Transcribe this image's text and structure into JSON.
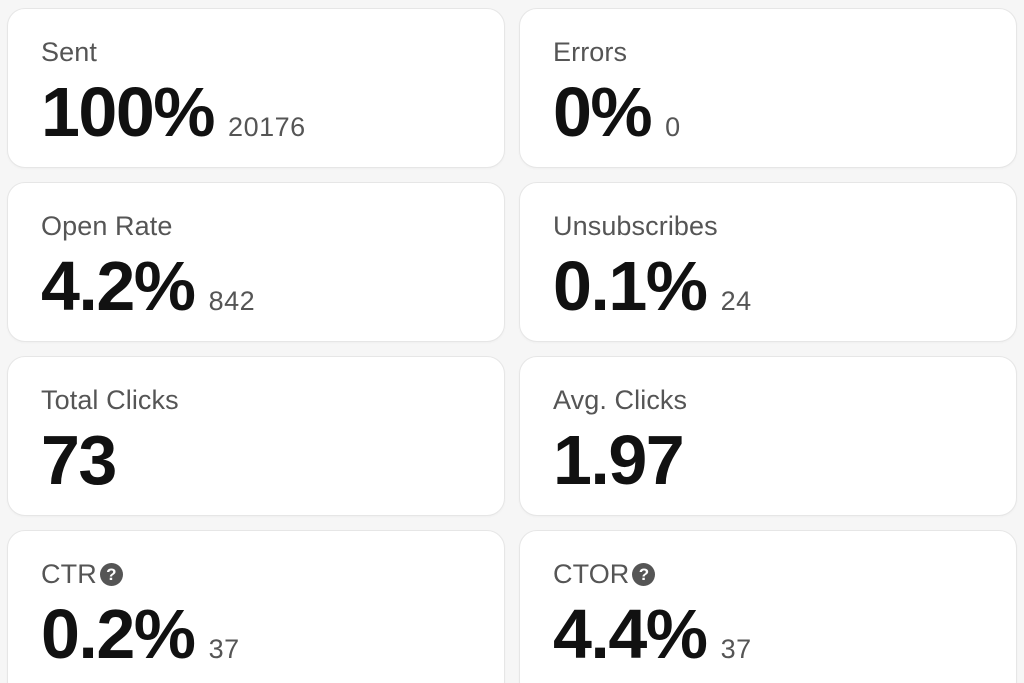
{
  "metrics": [
    {
      "label": "Sent",
      "value": "100%",
      "count": "20176",
      "help": false
    },
    {
      "label": "Errors",
      "value": "0%",
      "count": "0",
      "help": false
    },
    {
      "label": "Open Rate",
      "value": "4.2%",
      "count": "842",
      "help": false
    },
    {
      "label": "Unsubscribes",
      "value": "0.1%",
      "count": "24",
      "help": false
    },
    {
      "label": "Total Clicks",
      "value": "73",
      "count": "",
      "help": false
    },
    {
      "label": "Avg. Clicks",
      "value": "1.97",
      "count": "",
      "help": false
    },
    {
      "label": "CTR",
      "value": "0.2%",
      "count": "37",
      "help": true
    },
    {
      "label": "CTOR",
      "value": "4.4%",
      "count": "37",
      "help": true
    }
  ],
  "help_icon_glyph": "?",
  "colors": {
    "background": "#f6f6f6",
    "card": "#ffffff",
    "value_text": "#111111",
    "label_text": "#555555"
  }
}
